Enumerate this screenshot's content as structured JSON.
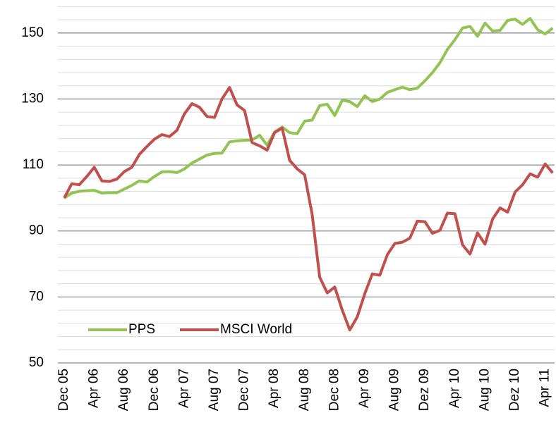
{
  "chart_data": {
    "type": "line",
    "categories": [
      "Dec 05",
      null,
      null,
      null,
      "Apr 06",
      null,
      null,
      null,
      "Aug 06",
      null,
      null,
      null,
      "Dec 06",
      null,
      null,
      null,
      "Apr 07",
      null,
      null,
      null,
      "Aug 07",
      null,
      null,
      null,
      "Dec 07",
      null,
      null,
      null,
      "Apr 08",
      null,
      null,
      null,
      "Aug 08",
      null,
      null,
      null,
      "Dec 08",
      null,
      null,
      null,
      "Apr 09",
      null,
      null,
      null,
      "Aug 09",
      null,
      null,
      null,
      "Dez 09",
      null,
      null,
      null,
      "Apr 10",
      null,
      null,
      null,
      "Aug 10",
      null,
      null,
      null,
      "Dez 10",
      null,
      null,
      null,
      "Apr 11",
      null
    ],
    "series": [
      {
        "name": "PPS",
        "color": "#92c353",
        "values": [
          100,
          101.5,
          102,
          102.2,
          102.3,
          101.5,
          101.6,
          101.6,
          102.7,
          103.8,
          105.2,
          104.8,
          106.5,
          107.9,
          108,
          107.7,
          108.8,
          110.6,
          111.8,
          113,
          113.5,
          113.6,
          117,
          117.3,
          117.5,
          117.6,
          119,
          116,
          120,
          121.5,
          119.8,
          119.5,
          123.3,
          123.6,
          128,
          128.4,
          125,
          129.6,
          129.2,
          127.7,
          131,
          129.2,
          130,
          132,
          132.8,
          133.6,
          132.8,
          133.3,
          135.5,
          138,
          141,
          145,
          148,
          151.5,
          152,
          149,
          153,
          150.6,
          150.8,
          153.8,
          154.2,
          152.6,
          154.4,
          151,
          149.7,
          151.5
        ]
      },
      {
        "name": "MSCI World",
        "color": "#c0504d",
        "values": [
          100,
          104.3,
          104,
          106.5,
          109.3,
          105.2,
          105,
          105.7,
          108,
          109.3,
          113.2,
          115.6,
          117.8,
          119.2,
          118.6,
          120.5,
          125.5,
          128.6,
          127.5,
          124.7,
          124.4,
          130,
          133.5,
          128.2,
          126.5,
          116.8,
          115.8,
          114.5,
          119.8,
          121.2,
          111.4,
          108.8,
          107,
          95,
          76,
          71.2,
          73,
          66,
          60,
          64,
          71,
          77,
          76.6,
          82.8,
          86.2,
          86.6,
          87.8,
          93,
          92.8,
          89.3,
          90.2,
          95.4,
          95.2,
          85.8,
          83,
          89.4,
          86,
          93.6,
          97,
          95.7,
          101.8,
          104,
          107.3,
          106.3,
          110.3,
          107.6
        ]
      }
    ],
    "ylim": [
      50,
      160
    ],
    "yticks": [
      50,
      70,
      90,
      110,
      130,
      150
    ],
    "minor_yticks": [
      54,
      58,
      62,
      66,
      74,
      78,
      82,
      86,
      94,
      98,
      102,
      106,
      114,
      118,
      122,
      126,
      134,
      138,
      142,
      146,
      154,
      158
    ],
    "grid": true,
    "legend": "lower left"
  }
}
